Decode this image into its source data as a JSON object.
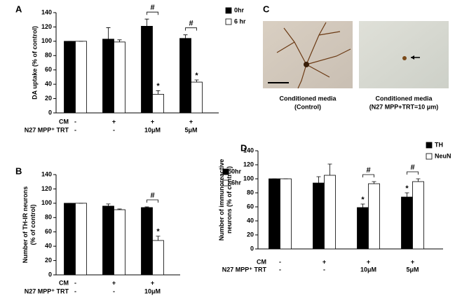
{
  "chart_data": [
    {
      "type": "bar",
      "panel": "A",
      "ylabel": [
        "DA uptake (% of control)"
      ],
      "ylim": [
        0,
        140
      ],
      "yticks": [
        0,
        20,
        40,
        60,
        80,
        100,
        120,
        140
      ],
      "series": [
        {
          "name": "0hr",
          "color": "#000000",
          "values": [
            100,
            103,
            121,
            104
          ],
          "errors": [
            0,
            16,
            10,
            5
          ]
        },
        {
          "name": "6 hr",
          "color": "#ffffff",
          "values": [
            100,
            99,
            26,
            43
          ],
          "errors": [
            0,
            3,
            5,
            3
          ]
        }
      ],
      "conditions": [
        {
          "name": "CM",
          "values": [
            "-",
            "+",
            "+",
            "+"
          ]
        },
        {
          "name": "N27 MPP⁺ TRT",
          "values": [
            "-",
            "-",
            "10μM",
            "5μM"
          ]
        }
      ],
      "annotations": [
        {
          "text": "#",
          "category": 2
        },
        {
          "text": "#",
          "category": 3
        },
        {
          "text": "*",
          "category": 2,
          "series": 1
        },
        {
          "text": "*",
          "category": 3,
          "series": 1
        }
      ]
    },
    {
      "type": "bar",
      "panel": "B",
      "ylabel": [
        "Number of TH-IR neurons",
        "(% of control)"
      ],
      "ylim": [
        0,
        140
      ],
      "yticks": [
        0,
        20,
        40,
        60,
        80,
        100,
        120,
        140
      ],
      "series": [
        {
          "name": "0hr",
          "color": "#000000",
          "values": [
            100,
            96,
            94
          ],
          "errors": [
            0,
            3,
            1
          ]
        },
        {
          "name": "6hr",
          "color": "#ffffff",
          "values": [
            100,
            91,
            48
          ],
          "errors": [
            0,
            1,
            6
          ]
        }
      ],
      "conditions": [
        {
          "name": "CM",
          "values": [
            "-",
            "+",
            "+"
          ]
        },
        {
          "name": "N27 MPP⁺ TRT",
          "values": [
            "-",
            "-",
            "10μM"
          ]
        }
      ],
      "annotations": [
        {
          "text": "#",
          "category": 2
        },
        {
          "text": "*",
          "category": 2,
          "series": 1
        }
      ]
    },
    {
      "type": "bar",
      "panel": "D",
      "ylabel": [
        "Number of immunoreactive",
        "neurons (% of control)"
      ],
      "ylim": [
        0,
        140
      ],
      "yticks": [
        0,
        20,
        40,
        60,
        80,
        100,
        120,
        140
      ],
      "series": [
        {
          "name": "TH",
          "color": "#000000",
          "values": [
            100,
            94,
            59,
            74
          ],
          "errors": [
            0,
            9,
            5,
            6
          ]
        },
        {
          "name": "NeuN",
          "color": "#ffffff",
          "values": [
            100,
            105,
            93,
            96
          ],
          "errors": [
            0,
            16,
            3,
            4
          ]
        }
      ],
      "conditions": [
        {
          "name": "CM",
          "values": [
            "-",
            "+",
            "+",
            "+"
          ]
        },
        {
          "name": "N27 MPP⁺ TRT",
          "values": [
            "-",
            "-",
            "10μM",
            "5μM"
          ]
        }
      ],
      "annotations": [
        {
          "text": "#",
          "category": 2
        },
        {
          "text": "#",
          "category": 3
        },
        {
          "text": "*",
          "category": 2,
          "series": 0
        },
        {
          "text": "*",
          "category": 3,
          "series": 0
        }
      ]
    }
  ],
  "images": {
    "panel": "C",
    "captions": [
      [
        "Conditioned media",
        "(Control)"
      ],
      [
        "Conditioned media",
        "(N27 MPP+TRT=10 μm)"
      ]
    ]
  }
}
